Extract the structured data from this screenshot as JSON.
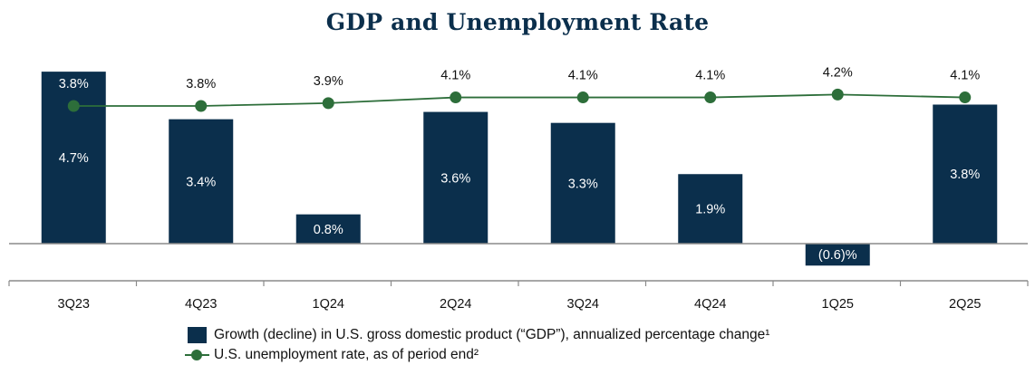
{
  "chart_data": {
    "type": "bar",
    "title": "GDP and Unemployment Rate",
    "categories": [
      "3Q23",
      "4Q23",
      "1Q24",
      "2Q24",
      "3Q24",
      "4Q24",
      "1Q25",
      "2Q25"
    ],
    "series": [
      {
        "name": "Growth (decline) in U.S. gross domestic product (“GDP”), annualized percentage change¹",
        "type": "bar",
        "values": [
          4.7,
          3.4,
          0.8,
          3.6,
          3.3,
          1.9,
          -0.6,
          3.8
        ],
        "labels": [
          "4.7%",
          "3.4%",
          "0.8%",
          "3.6%",
          "3.3%",
          "1.9%",
          "(0.6)%",
          "3.8%"
        ],
        "color": "#0b2f4c"
      },
      {
        "name": "U.S. unemployment rate, as of period end²",
        "type": "line",
        "values": [
          3.8,
          3.8,
          3.9,
          4.1,
          4.1,
          4.1,
          4.2,
          4.1
        ],
        "labels": [
          "3.8%",
          "3.8%",
          "3.9%",
          "4.1%",
          "4.1%",
          "4.1%",
          "4.2%",
          "4.1%"
        ],
        "color": "#2d6e3a"
      }
    ],
    "ylim": [
      -1.3,
      6.4
    ],
    "xlabel": "",
    "ylabel": "",
    "grid": false,
    "legend_position": "bottom"
  }
}
